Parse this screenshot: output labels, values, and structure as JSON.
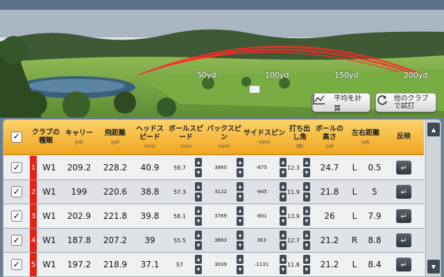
{
  "scene": {
    "distance_markers": [
      "50yd",
      "100yd",
      "150yd",
      "200yd"
    ],
    "buttons": {
      "average_label": "平均を計算",
      "other_club_label": "他のクラブで試打"
    },
    "trajectory_color": "#ff2a2a"
  },
  "table": {
    "headers": {
      "club_type": "クラブの種類",
      "carry": "キャリー",
      "carry_unit": "(yd)",
      "total": "飛距離",
      "total_unit": "(yd)",
      "head_speed": "ヘッドスピード",
      "head_speed_unit": "(m/s)",
      "ball_speed": "ボールスピード",
      "ball_speed_unit": "(m/s)",
      "back_spin": "バックスピン",
      "back_spin_unit": "(rpm)",
      "side_spin": "サイドスピン",
      "side_spin_unit": "(rpm)",
      "launch_angle": "打ち出し角",
      "launch_angle_unit": "(度)",
      "ball_height": "ボールの高さ",
      "ball_height_unit": "(yd)",
      "lr_distance": "左右距離",
      "lr_distance_unit": "(yd)",
      "flip": "反映"
    },
    "rows": [
      {
        "num": "1",
        "club": "W1",
        "carry": "209.2",
        "total": "228.2",
        "head_speed": "40.9",
        "ball_speed": "59.7",
        "back_spin": "3960",
        "side_spin": "-675",
        "launch_angle": "12.3",
        "ball_height": "24.7",
        "lr_dir": "L",
        "lr_dist": "0.5"
      },
      {
        "num": "2",
        "club": "W1",
        "carry": "199",
        "total": "220.6",
        "head_speed": "38.8",
        "ball_speed": "57.3",
        "back_spin": "3122",
        "side_spin": "-945",
        "launch_angle": "11.9",
        "ball_height": "21.8",
        "lr_dir": "L",
        "lr_dist": "5"
      },
      {
        "num": "3",
        "club": "W1",
        "carry": "202.9",
        "total": "221.8",
        "head_speed": "39.8",
        "ball_speed": "58.1",
        "back_spin": "3769",
        "side_spin": "-801",
        "launch_angle": "13.9",
        "ball_height": "26",
        "lr_dir": "L",
        "lr_dist": "7.9"
      },
      {
        "num": "4",
        "club": "W1",
        "carry": "187.8",
        "total": "207.2",
        "head_speed": "39",
        "ball_speed": "55.5",
        "back_spin": "3863",
        "side_spin": "363",
        "launch_angle": "12.7",
        "ball_height": "21.2",
        "lr_dir": "R",
        "lr_dist": "8.8"
      },
      {
        "num": "5",
        "club": "W1",
        "carry": "197.2",
        "total": "218.9",
        "head_speed": "37.1",
        "ball_speed": "57",
        "back_spin": "3039",
        "side_spin": "-1131",
        "launch_angle": "11.8",
        "ball_height": "21.2",
        "lr_dir": "L",
        "lr_dist": "8.4"
      }
    ]
  },
  "colors": {
    "header_orange": "#f0a520",
    "row_number_red": "#e2231a"
  }
}
